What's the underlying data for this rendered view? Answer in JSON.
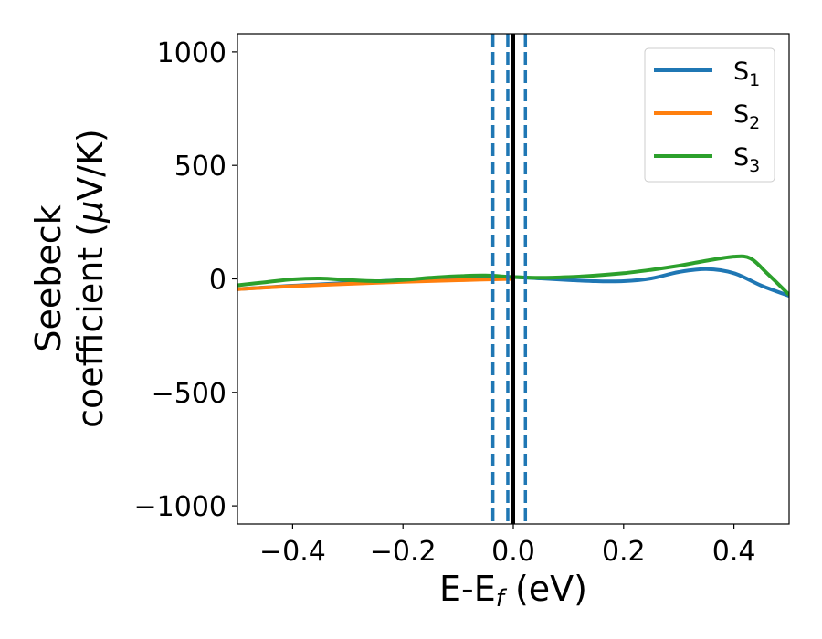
{
  "chart_data": {
    "type": "line",
    "xlabel": "E-E",
    "xlabel_sub": "f",
    "xlabel_unit": " (eV)",
    "ylabel_line1": "Seebeck",
    "ylabel_line2_pre": "coefficient  (",
    "ylabel_mu": "μ",
    "ylabel_line2_post": "V/K)",
    "xlim": [
      -0.5,
      0.5
    ],
    "ylim": [
      -1080,
      1080
    ],
    "x_ticks": [
      -0.4,
      -0.2,
      0.0,
      0.2,
      0.4
    ],
    "x_tick_labels": [
      "−0.4",
      "−0.2",
      "0.0",
      "0.2",
      "0.4"
    ],
    "y_ticks": [
      1000,
      500,
      0,
      -500,
      -1000
    ],
    "y_tick_labels": [
      "1000",
      "500",
      "0",
      "−500",
      "−1000"
    ],
    "grid": false,
    "legend_position": "top-right",
    "colors": {
      "S1": "#1f77b4",
      "S2": "#ff7f0e",
      "S3": "#2ca02c",
      "black": "#000000"
    },
    "vertical_lines": [
      {
        "x": -0.037,
        "style": "dashed",
        "color": "#1f77b4"
      },
      {
        "x": -0.01,
        "style": "dashed",
        "color": "#1f77b4"
      },
      {
        "x": 0.0,
        "style": "solid",
        "color": "#000000"
      },
      {
        "x": 0.022,
        "style": "dashed",
        "color": "#1f77b4"
      }
    ],
    "series": [
      {
        "name": "S",
        "sub": "1",
        "color": "#1f77b4",
        "x": [
          -0.5,
          -0.45,
          -0.4,
          -0.35,
          -0.3,
          -0.25,
          -0.2,
          -0.15,
          -0.1,
          -0.05,
          0.0,
          0.05,
          0.1,
          0.15,
          0.2,
          0.25,
          0.3,
          0.35,
          0.4,
          0.45,
          0.5
        ],
        "y": [
          -45,
          -38,
          -30,
          -24,
          -17,
          -11,
          -5,
          0,
          3,
          8,
          8,
          2,
          -5,
          -10,
          -10,
          2,
          30,
          43,
          25,
          -30,
          -75
        ]
      },
      {
        "name": "S",
        "sub": "2",
        "color": "#ff7f0e",
        "x": [
          -0.5,
          -0.4,
          -0.3,
          -0.2,
          -0.1,
          0.0
        ],
        "y": [
          -45,
          -32,
          -22,
          -13,
          -6,
          0
        ]
      },
      {
        "name": "S",
        "sub": "3",
        "color": "#2ca02c",
        "x": [
          -0.5,
          -0.45,
          -0.4,
          -0.35,
          -0.3,
          -0.25,
          -0.2,
          -0.15,
          -0.1,
          -0.05,
          0.0,
          0.05,
          0.1,
          0.15,
          0.2,
          0.25,
          0.3,
          0.35,
          0.4,
          0.43,
          0.46,
          0.5
        ],
        "y": [
          -28,
          -15,
          -2,
          2,
          -5,
          -10,
          -5,
          5,
          12,
          15,
          8,
          5,
          8,
          15,
          25,
          40,
          58,
          80,
          98,
          90,
          25,
          -70
        ]
      }
    ]
  }
}
